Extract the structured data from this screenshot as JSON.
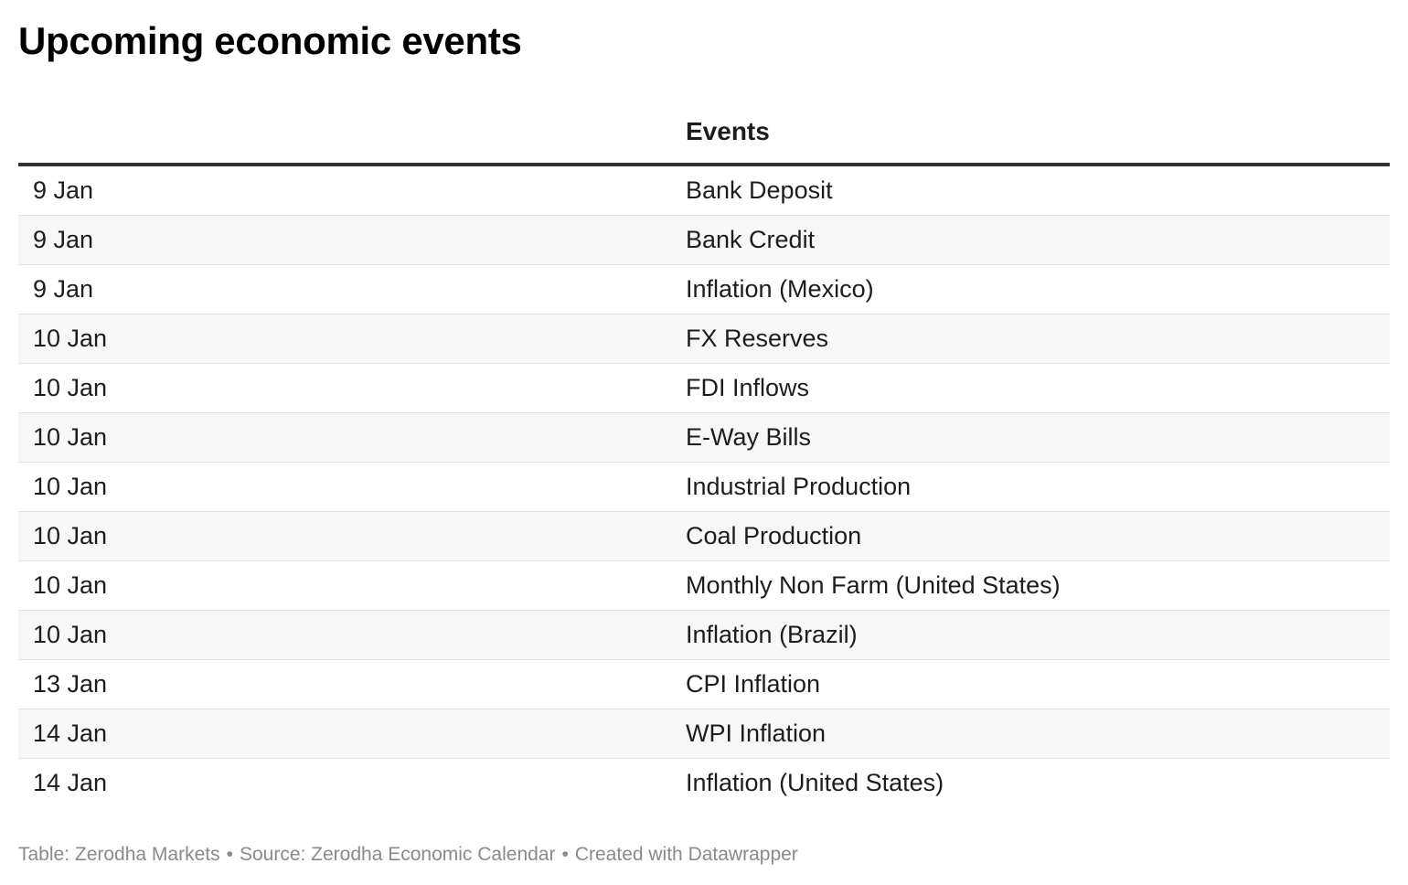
{
  "title": "Upcoming economic events",
  "table": {
    "headers": [
      "",
      "Events"
    ],
    "rows": [
      {
        "date": "9 Jan",
        "event": "Bank Deposit"
      },
      {
        "date": "9 Jan",
        "event": "Bank Credit"
      },
      {
        "date": "9 Jan",
        "event": "Inflation (Mexico)"
      },
      {
        "date": "10 Jan",
        "event": "FX Reserves"
      },
      {
        "date": "10 Jan",
        "event": "FDI Inflows"
      },
      {
        "date": "10 Jan",
        "event": "E-Way Bills"
      },
      {
        "date": "10 Jan",
        "event": "Industrial Production"
      },
      {
        "date": "10 Jan",
        "event": "Coal Production"
      },
      {
        "date": "10 Jan",
        "event": "Monthly Non Farm (United States)"
      },
      {
        "date": "10 Jan",
        "event": "Inflation (Brazil)"
      },
      {
        "date": "13 Jan",
        "event": "CPI Inflation"
      },
      {
        "date": "14 Jan",
        "event": "WPI Inflation"
      },
      {
        "date": "14 Jan",
        "event": "Inflation (United States)"
      }
    ]
  },
  "footer": {
    "table_credit": "Table: Zerodha Markets",
    "source": "Source: Zerodha Economic Calendar",
    "created_with": "Created with Datawrapper",
    "separator": "•"
  },
  "colors": {
    "title": "#000000",
    "text": "#1d1d1d",
    "header_rule": "#333333",
    "row_divider": "#e2e2e2",
    "stripe": "#f7f7f7",
    "footer_text": "#8a8a8a"
  }
}
